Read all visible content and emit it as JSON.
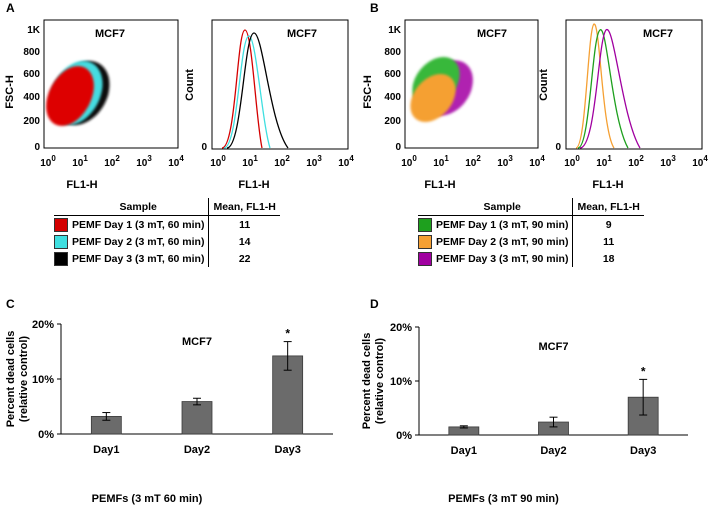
{
  "panels": [
    {
      "letter": "A",
      "scatter": {
        "title": "MCF7",
        "xlabel": "FL1-H",
        "ylabel": "FSC-H",
        "yticks": [
          "1K",
          "800",
          "600",
          "400",
          "200",
          "0"
        ],
        "xticks": [
          "10^0",
          "10^1",
          "10^2",
          "10^3",
          "10^4"
        ]
      },
      "histogram": {
        "title": "MCF7",
        "xlabel": "FL1-H",
        "ylabel": "Count",
        "ytick0": "0",
        "xticks": [
          "10^0",
          "10^1",
          "10^2",
          "10^3",
          "10^4"
        ]
      },
      "table": {
        "header_sample": "Sample",
        "header_mean": "Mean, FL1-H",
        "rows": [
          {
            "label": "PEMF Day 1 (3 mT, 60 min)",
            "mean": "11",
            "color": "#d40000"
          },
          {
            "label": "PEMF Day 2 (3 mT, 60 min)",
            "mean": "14",
            "color": "#3fdfe0"
          },
          {
            "label": "PEMF Day 3 (3 mT, 60 min)",
            "mean": "22",
            "color": "#000000"
          }
        ]
      }
    },
    {
      "letter": "B",
      "scatter": {
        "title": "MCF7",
        "xlabel": "FL1-H",
        "ylabel": "FSC-H",
        "yticks": [
          "1K",
          "800",
          "600",
          "400",
          "200",
          "0"
        ],
        "xticks": [
          "10^0",
          "10^1",
          "10^2",
          "10^3",
          "10^4"
        ]
      },
      "histogram": {
        "title": "MCF7",
        "xlabel": "FL1-H",
        "ylabel": "Count",
        "ytick0": "0",
        "xticks": [
          "10^0",
          "10^1",
          "10^2",
          "10^3",
          "10^4"
        ]
      },
      "table": {
        "header_sample": "Sample",
        "header_mean": "Mean, FL1-H",
        "rows": [
          {
            "label": "PEMF Day 1 (3 mT, 90 min)",
            "mean": "9",
            "color": "#1ea01e"
          },
          {
            "label": "PEMF Day 2 (3 mT, 90 min)",
            "mean": "11",
            "color": "#f5a033"
          },
          {
            "label": "PEMF Day 3 (3 mT, 90 min)",
            "mean": "18",
            "color": "#a000a0"
          }
        ]
      }
    }
  ],
  "chart_data": [
    {
      "panel": "C",
      "type": "bar",
      "title": "MCF7",
      "categories": [
        "Day1",
        "Day2",
        "Day3"
      ],
      "values": [
        3.2,
        5.9,
        14.2
      ],
      "errors": [
        0.7,
        0.6,
        2.6
      ],
      "significance": [
        "",
        "",
        "*"
      ],
      "ylabel": "Percent dead cells",
      "ylabel2": "(relative control)",
      "xlabel": "PEMFs (3 mT 60 min)",
      "ylim": [
        0,
        20
      ],
      "ytick_labels": [
        "0%",
        "10%",
        "20%"
      ],
      "bar_color": "#6b6b6b"
    },
    {
      "panel": "D",
      "type": "bar",
      "title": "MCF7",
      "categories": [
        "Day1",
        "Day2",
        "Day3"
      ],
      "values": [
        1.5,
        2.4,
        7.0
      ],
      "errors": [
        0.2,
        0.9,
        3.3
      ],
      "significance": [
        "",
        "",
        "*"
      ],
      "ylabel": "Percent dead cells",
      "ylabel2": "(relative control)",
      "xlabel": "PEMFs (3 mT 90 min)",
      "ylim": [
        0,
        20
      ],
      "ytick_labels": [
        "0%",
        "10%",
        "20%"
      ],
      "bar_color": "#6b6b6b"
    }
  ]
}
